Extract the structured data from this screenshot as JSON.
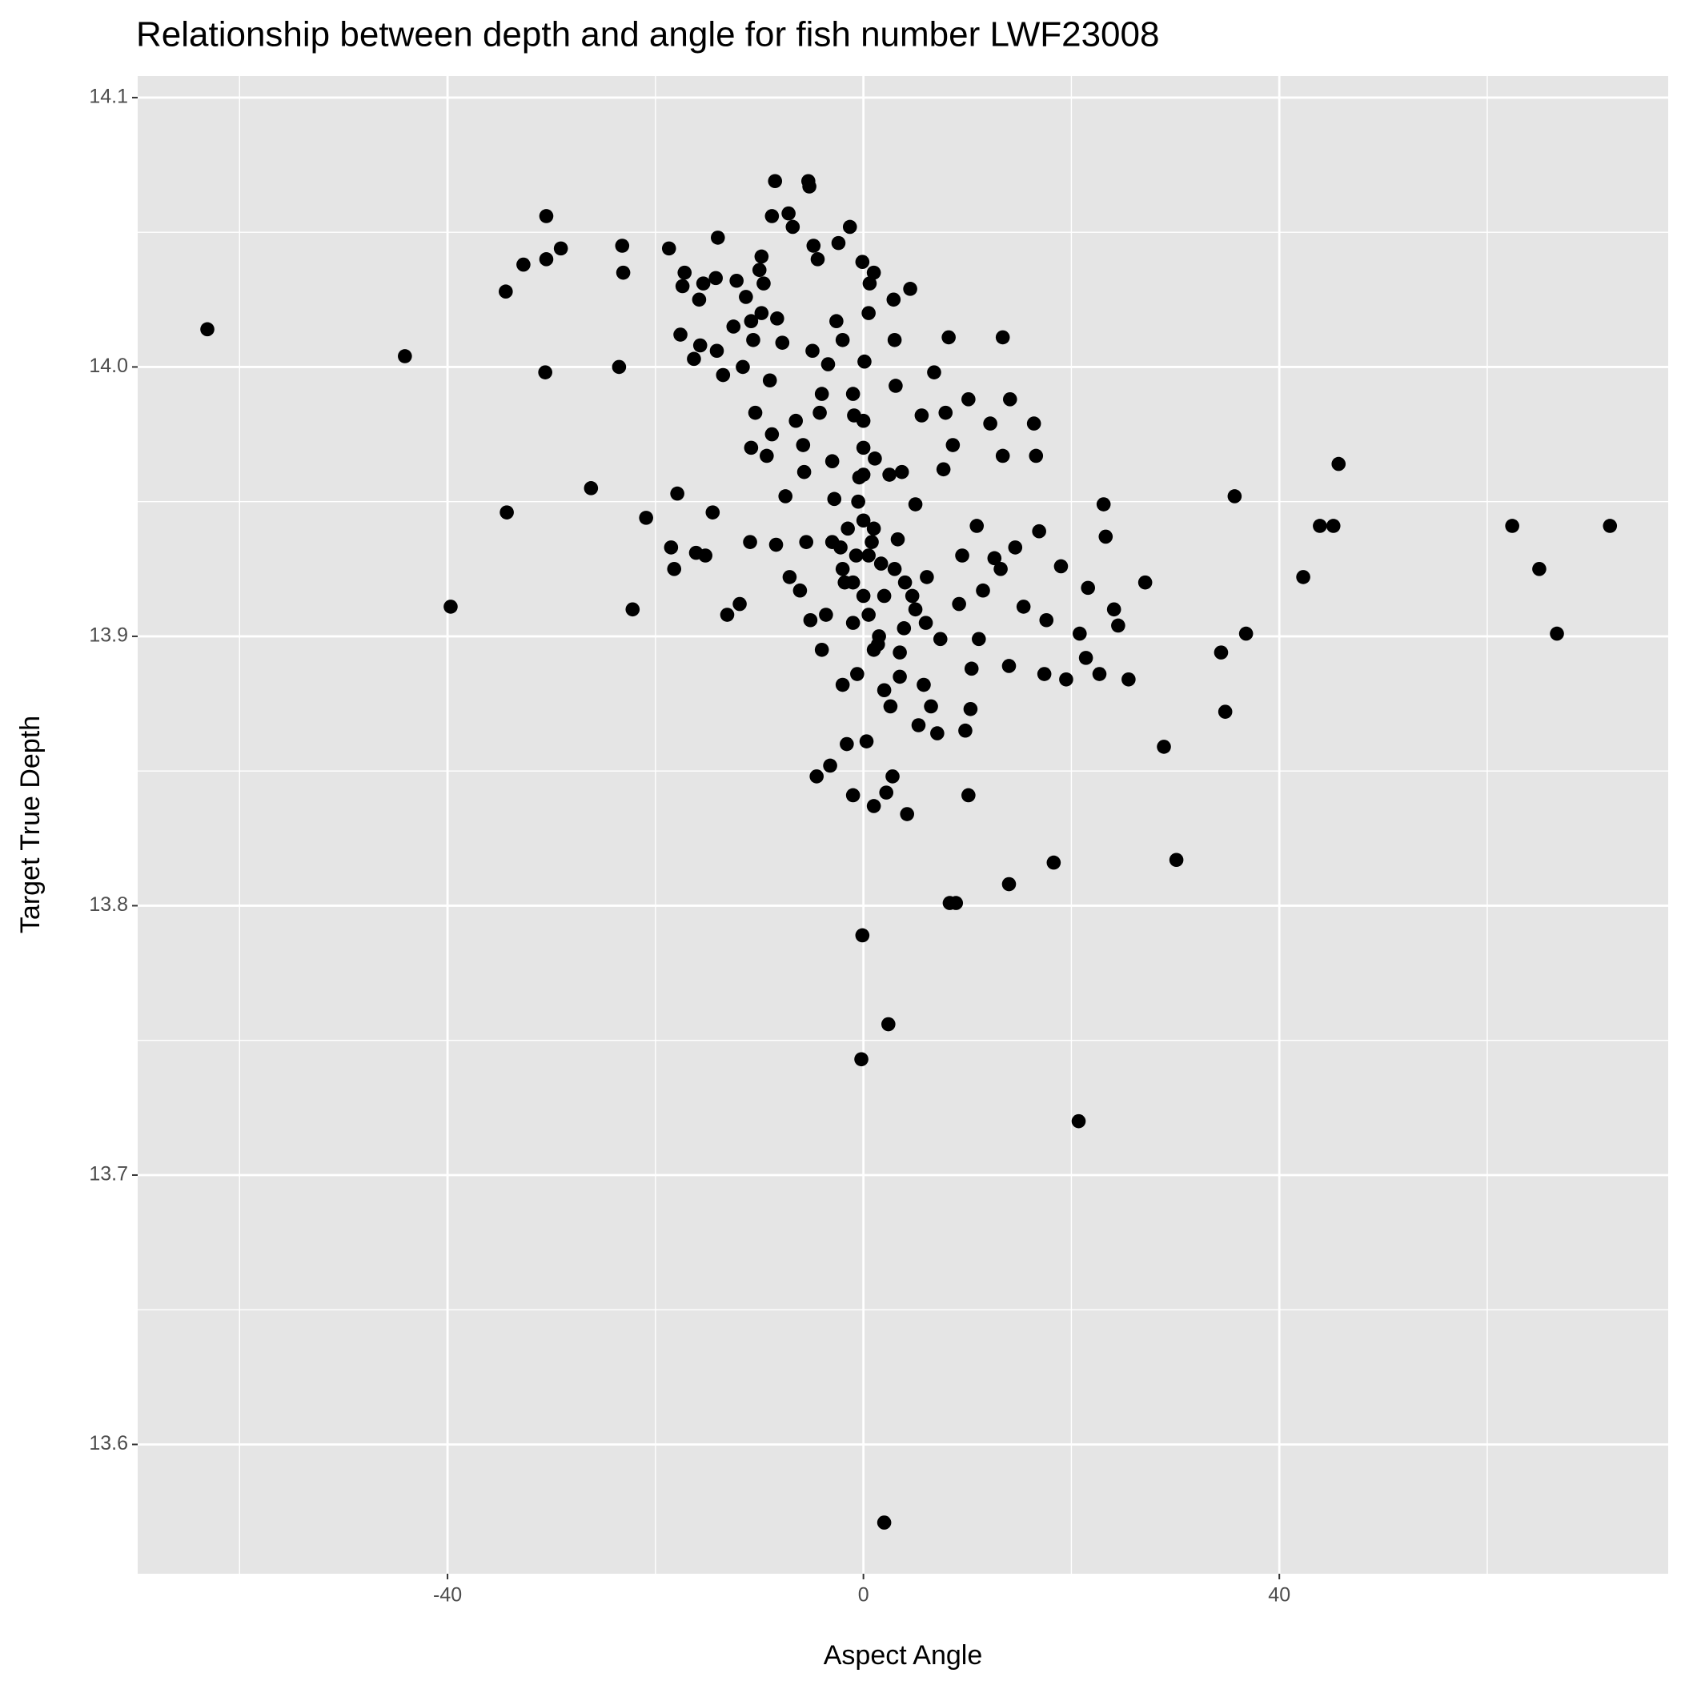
{
  "chart_data": {
    "type": "scatter",
    "title": "Relationship between depth and angle for fish number LWF23008",
    "x_label": "Aspect Angle",
    "y_label": "Target True Depth",
    "color": "#000000",
    "panel_color": "#e5e5e5",
    "grid": true,
    "xlim": [
      -69.8,
      77.4
    ],
    "ylim": [
      13.552,
      14.108
    ],
    "xticks": [
      -40,
      0,
      40
    ],
    "yticks": [
      13.6,
      13.7,
      13.8,
      13.9,
      {
        "value": 14,
        "label": "14.0"
      },
      14.1
    ],
    "xminorticks": [
      -60,
      -20,
      20,
      60
    ],
    "yminorticks": [
      13.55,
      13.65,
      13.75,
      13.85,
      13.95,
      14.05
    ],
    "x": [
      -63.1,
      -44.1,
      -39.7,
      -34.4,
      -34.3,
      -32.7,
      -30.5,
      -30.5,
      -30.6,
      -29.1,
      -26.2,
      -23.5,
      -23.2,
      -23.1,
      -22.2,
      -20.9,
      -18.7,
      -18.5,
      -18.2,
      -17.9,
      -17.6,
      -17.4,
      -17.2,
      -16.3,
      -15.8,
      -15.7,
      -16.1,
      -15.2,
      -15.4,
      -14.5,
      -14.2,
      -14.0,
      -14.1,
      -13.5,
      -13.1,
      -12.5,
      -12.2,
      -11.9,
      -11.6,
      -11.3,
      -10.9,
      -10.8,
      -10.8,
      -10.6,
      -10.4,
      -10.0,
      -9.8,
      -9.8,
      -9.6,
      -9.3,
      -9.0,
      -8.8,
      -8.8,
      -8.5,
      -8.3,
      -8.4,
      -7.8,
      -7.5,
      -7.2,
      -7.1,
      -6.8,
      -6.5,
      -6.1,
      -5.8,
      -5.7,
      -5.5,
      -5.3,
      -5.2,
      -5.1,
      -4.9,
      -4.8,
      -4.5,
      -4.4,
      -4.2,
      -4.0,
      -3.6,
      -3.4,
      -3.2,
      -3.0,
      -2.8,
      -2.6,
      -2.4,
      -2.2,
      -2.0,
      -1.8,
      -1.6,
      -1.3,
      -1.0,
      -0.9,
      -0.7,
      -0.6,
      -0.4,
      -0.2,
      -0.1,
      -0.1,
      0.0,
      0.1,
      0.3,
      0.5,
      0.6,
      0.8,
      1.0,
      1.1,
      1.4,
      1.7,
      2.0,
      2.2,
      2.4,
      2.6,
      2.8,
      2.9,
      3.1,
      3.3,
      3.5,
      3.7,
      3.9,
      4.2,
      4.5,
      4.7,
      5.0,
      5.3,
      5.6,
      5.8,
      6.1,
      6.5,
      6.8,
      7.1,
      7.4,
      7.7,
      7.9,
      8.2,
      8.3,
      8.6,
      8.9,
      9.2,
      9.5,
      9.8,
      10.1,
      10.1,
      10.3,
      10.4,
      10.9,
      11.1,
      11.5,
      12.2,
      12.6,
      13.2,
      13.4,
      13.4,
      14.0,
      14.1,
      14.0,
      14.6,
      15.4,
      16.4,
      16.6,
      16.9,
      17.4,
      17.6,
      18.3,
      19.0,
      19.5,
      20.7,
      20.8,
      21.4,
      21.6,
      22.7,
      23.1,
      23.3,
      24.1,
      24.5,
      25.5,
      27.1,
      28.9,
      30.1,
      34.4,
      34.8,
      35.7,
      36.8,
      42.3,
      43.9,
      45.2,
      45.7,
      62.4,
      65.0,
      66.7,
      71.8,
      -1.0,
      0.5,
      1.0,
      -0.5,
      0.0,
      0.0,
      0.0,
      -1.5,
      2.0,
      3.0,
      -2.0,
      1.5,
      -3.0,
      4.0,
      5.0,
      6.0,
      2.5,
      -1.0,
      0.5,
      1.0,
      -2.0,
      3.0,
      -4.0,
      2.0,
      3.5,
      -1.0,
      0.0,
      1.0
    ],
    "y": [
      14.014,
      14.004,
      13.911,
      14.028,
      13.946,
      14.038,
      14.056,
      14.04,
      13.998,
      14.044,
      13.955,
      14.0,
      14.045,
      14.035,
      13.91,
      13.944,
      14.044,
      13.933,
      13.925,
      13.953,
      14.012,
      14.03,
      14.035,
      14.003,
      14.025,
      14.008,
      13.931,
      13.93,
      14.031,
      13.946,
      14.033,
      14.048,
      14.006,
      13.997,
      13.908,
      14.015,
      14.032,
      13.912,
      14.0,
      14.026,
      13.935,
      13.97,
      14.017,
      14.01,
      13.983,
      14.036,
      14.041,
      14.02,
      14.031,
      13.967,
      13.995,
      14.056,
      13.975,
      14.069,
      14.018,
      13.934,
      14.009,
      13.952,
      14.057,
      13.922,
      14.052,
      13.98,
      13.917,
      13.971,
      13.961,
      13.935,
      14.069,
      14.067,
      13.906,
      14.006,
      14.045,
      13.848,
      14.04,
      13.983,
      13.895,
      13.908,
      14.001,
      13.852,
      13.965,
      13.951,
      14.017,
      14.046,
      13.933,
      13.882,
      13.92,
      13.86,
      14.052,
      13.841,
      13.982,
      13.93,
      13.886,
      13.959,
      13.743,
      13.789,
      14.039,
      13.943,
      14.002,
      13.861,
      13.908,
      14.031,
      13.935,
      13.837,
      13.966,
      13.897,
      13.927,
      13.571,
      13.842,
      13.756,
      13.874,
      13.848,
      14.025,
      13.993,
      13.936,
      13.894,
      13.961,
      13.903,
      13.834,
      14.029,
      13.915,
      13.949,
      13.867,
      13.982,
      13.882,
      13.922,
      13.874,
      13.998,
      13.864,
      13.899,
      13.962,
      13.983,
      14.011,
      13.801,
      13.971,
      13.801,
      13.912,
      13.93,
      13.865,
      13.988,
      13.841,
      13.873,
      13.888,
      13.941,
      13.899,
      13.917,
      13.979,
      13.929,
      13.925,
      14.011,
      13.967,
      13.889,
      13.988,
      13.808,
      13.933,
      13.911,
      13.979,
      13.967,
      13.939,
      13.886,
      13.906,
      13.816,
      13.926,
      13.884,
      13.72,
      13.901,
      13.892,
      13.918,
      13.886,
      13.949,
      13.937,
      13.91,
      13.904,
      13.884,
      13.92,
      13.859,
      13.817,
      13.894,
      13.872,
      13.952,
      13.901,
      13.922,
      13.941,
      13.941,
      13.964,
      13.941,
      13.925,
      13.901,
      13.941,
      13.92,
      13.93,
      13.94,
      13.95,
      13.96,
      13.97,
      13.98,
      13.94,
      13.915,
      13.925,
      13.925,
      13.9,
      13.935,
      13.92,
      13.91,
      13.905,
      13.96,
      13.99,
      14.02,
      14.035,
      14.01,
      14.01,
      13.99,
      13.88,
      13.885,
      13.905,
      13.915,
      13.895
    ]
  }
}
